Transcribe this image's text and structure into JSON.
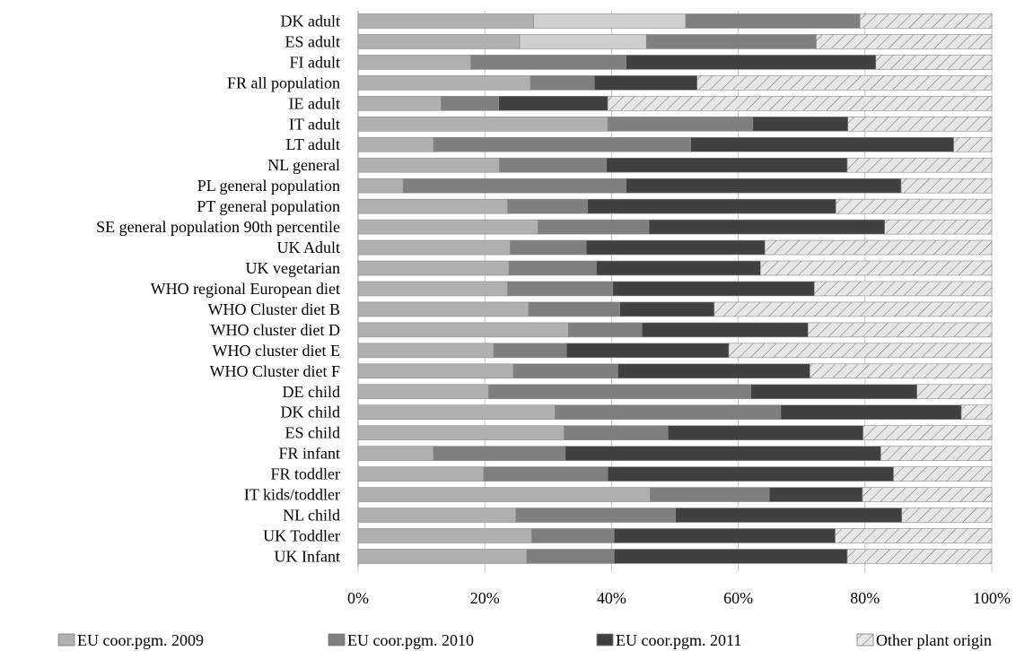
{
  "chart_data": {
    "type": "bar",
    "orientation": "horizontal",
    "stacked": "percent",
    "categories": [
      "DK adult",
      "ES adult",
      "FI  adult",
      "FR all population",
      "IE adult",
      "IT adult",
      "LT adult",
      "NL general",
      "PL  general population",
      "PT general population",
      "SE  general population 90th percentile",
      "UK Adult",
      "UK vegetarian",
      "WHO regional European diet",
      "WHO Cluster diet B",
      "WHO cluster diet D",
      "WHO cluster diet E",
      "WHO Cluster diet F",
      "DE child",
      "DK child",
      "ES child",
      "FR infant",
      "FR toddler",
      "IT kids/toddler",
      "NL child",
      "UK Toddler",
      "UK Infant"
    ],
    "series": [
      {
        "name": "EU coor.pgm. 2009",
        "color": "#b0b0b0",
        "pattern": "solid",
        "values": [
          27.7,
          25.5,
          17.8,
          27.2,
          13.1,
          39.4,
          11.9,
          22.3,
          7.1,
          23.6,
          28.4,
          24.0,
          23.8,
          23.6,
          26.9,
          33.2,
          21.4,
          24.5,
          20.6,
          31.1,
          32.5,
          11.9,
          19.8,
          46.1,
          24.9,
          27.4,
          26.6
        ]
      },
      {
        "name": "",
        "color": "#cfcfcf",
        "pattern": "solid",
        "values": [
          24.0,
          20.0,
          0,
          0,
          0,
          0,
          0,
          0,
          0,
          0,
          0,
          0,
          0,
          0,
          0,
          0,
          0,
          0,
          0,
          0,
          0,
          0,
          0,
          0,
          0,
          0,
          0
        ]
      },
      {
        "name": "EU coor.pgm. 2010",
        "color": "#7f7f7f",
        "pattern": "solid",
        "values": [
          27.5,
          26.8,
          24.5,
          10.1,
          9.1,
          22.9,
          40.6,
          16.9,
          35.2,
          12.6,
          17.5,
          12.0,
          13.8,
          16.6,
          14.4,
          11.6,
          11.5,
          16.5,
          41.4,
          35.6,
          16.4,
          20.8,
          19.6,
          18.8,
          25.2,
          13.0,
          13.8
        ]
      },
      {
        "name": "EU coor.pgm. 2011",
        "color": "#404040",
        "pattern": "solid",
        "values": [
          0,
          0,
          39.4,
          16.2,
          17.2,
          15.0,
          41.5,
          38.0,
          43.4,
          39.2,
          37.2,
          28.2,
          25.9,
          31.8,
          14.9,
          26.2,
          25.6,
          30.3,
          26.2,
          28.5,
          30.8,
          49.8,
          45.1,
          14.7,
          35.7,
          34.9,
          36.8
        ]
      },
      {
        "name": "Other plant origin",
        "color": "#e6e6e6",
        "pattern": "hatch",
        "values": [
          20.8,
          27.7,
          18.3,
          46.5,
          60.6,
          22.7,
          6.0,
          22.8,
          14.3,
          24.6,
          16.9,
          35.8,
          36.5,
          28.0,
          43.8,
          29.0,
          41.5,
          28.7,
          11.8,
          4.8,
          20.3,
          17.5,
          15.5,
          20.4,
          14.2,
          24.7,
          22.8
        ]
      }
    ],
    "xlim": [
      0,
      100
    ],
    "x_ticks": [
      "0%",
      "20%",
      "40%",
      "60%",
      "80%",
      "100%"
    ],
    "xlabel": "",
    "ylabel": "",
    "title": "",
    "grid": "vertical",
    "legend_position": "bottom",
    "legend": [
      {
        "label": "EU coor.pgm. 2009",
        "color": "#b0b0b0",
        "pattern": "solid"
      },
      {
        "label": "EU coor.pgm. 2010",
        "color": "#7f7f7f",
        "pattern": "solid"
      },
      {
        "label": "EU coor.pgm. 2011",
        "color": "#404040",
        "pattern": "solid"
      },
      {
        "label": "Other plant origin",
        "color": "#e6e6e6",
        "pattern": "hatch"
      }
    ]
  }
}
